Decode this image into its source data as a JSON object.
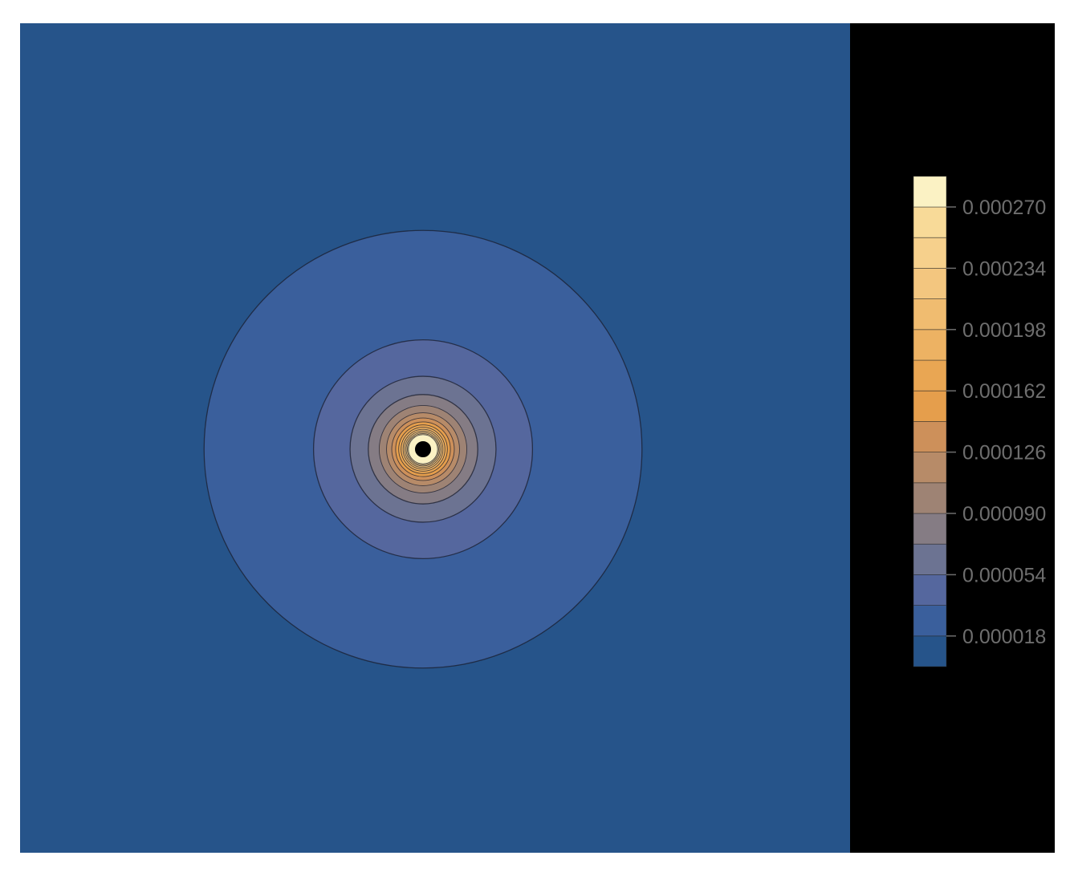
{
  "chart_data": {
    "type": "contour",
    "title": "",
    "xlabel": "",
    "ylabel": "",
    "grid": false,
    "legend": "right",
    "center_hole": true,
    "contour_levels": [
      0.0,
      1.8e-05,
      3.6e-05,
      5.4e-05,
      7.2e-05,
      9e-05,
      0.000108,
      0.000126,
      0.000144,
      0.000162,
      0.00018,
      0.000198,
      0.000216,
      0.000234,
      0.000252,
      0.00027,
      0.000288
    ],
    "colorbar": {
      "ticks": [
        1.8e-05,
        5.4e-05,
        9e-05,
        0.000126,
        0.000162,
        0.000198,
        0.000234,
        0.00027
      ],
      "tick_labels": [
        "0.000018",
        "0.000054",
        "0.000090",
        "0.000126",
        "0.000162",
        "0.000198",
        "0.000234",
        "0.000270"
      ],
      "colors": [
        "#26548a",
        "#3a5f9c",
        "#55679e",
        "#6c7392",
        "#857c84",
        "#9e8374",
        "#b78b68",
        "#cd905a",
        "#e59e4c",
        "#e9a653",
        "#edb263",
        "#f0bc70",
        "#f3c67f",
        "#f6d08c",
        "#f8da98",
        "#fbf2c4"
      ]
    }
  }
}
